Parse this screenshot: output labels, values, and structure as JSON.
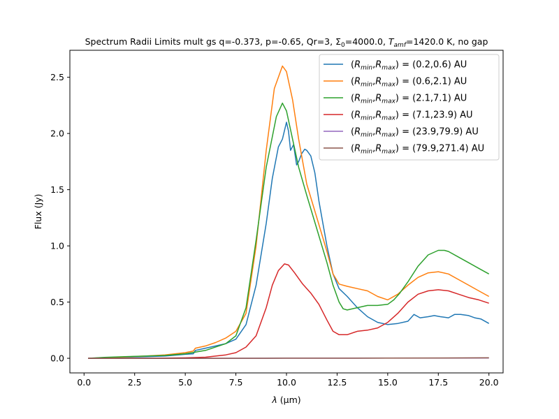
{
  "chart_data": {
    "type": "line",
    "title": {
      "prefix": "Spectrum Radii Limits mult gs q=-0.373, p=-0.65, Qr=3, ",
      "sigma_symbol": "Σ",
      "sigma_sub": "0",
      "sigma_value": "=4000.0, ",
      "tamf_symbol": "T",
      "tamf_sub": "amf",
      "tamf_value": "=1420.0 K, no gap"
    },
    "xlabel": {
      "symbol": "λ",
      "unit": " (μm)"
    },
    "ylabel": "Flux (Jy)",
    "xlim": [
      -0.7,
      20.7
    ],
    "ylim": [
      -0.13,
      2.74
    ],
    "xticks": [
      0.0,
      2.5,
      5.0,
      7.5,
      10.0,
      12.5,
      15.0,
      17.5,
      20.0
    ],
    "xtick_labels": [
      "0.0",
      "2.5",
      "5.0",
      "7.5",
      "10.0",
      "12.5",
      "15.0",
      "17.5",
      "20.0"
    ],
    "yticks": [
      0.0,
      0.5,
      1.0,
      1.5,
      2.0,
      2.5
    ],
    "ytick_labels": [
      "0.0",
      "0.5",
      "1.0",
      "1.5",
      "2.0",
      "2.5"
    ],
    "grid": false,
    "legend": {
      "placement": "top-right",
      "prefix": "(",
      "rmin_symbol": "R",
      "rmin_sub": "min",
      "sep": ",",
      "rmax_symbol": "R",
      "rmax_sub": "max",
      "mid": ") = "
    },
    "series": [
      {
        "range": "(0.2,0.6) AU",
        "color": "#1f77b4",
        "x": [
          0.2,
          1.0,
          2.0,
          3.0,
          4.0,
          5.0,
          5.4,
          5.5,
          6.0,
          7.0,
          7.5,
          8.0,
          8.5,
          9.0,
          9.3,
          9.6,
          9.8,
          10.0,
          10.1,
          10.2,
          10.35,
          10.5,
          10.6,
          10.75,
          10.9,
          11.0,
          11.2,
          11.4,
          11.6,
          11.8,
          12.0,
          12.3,
          12.6,
          13.0,
          13.5,
          14.0,
          14.5,
          15.0,
          15.5,
          16.0,
          16.3,
          16.6,
          17.0,
          17.3,
          17.6,
          18.0,
          18.3,
          18.6,
          19.0,
          19.3,
          19.6,
          20.0
        ],
        "y": [
          0.0,
          0.005,
          0.01,
          0.015,
          0.02,
          0.035,
          0.04,
          0.07,
          0.09,
          0.13,
          0.17,
          0.3,
          0.65,
          1.2,
          1.6,
          1.88,
          1.95,
          2.1,
          2.02,
          1.85,
          1.9,
          1.72,
          1.75,
          1.82,
          1.86,
          1.85,
          1.8,
          1.65,
          1.4,
          1.2,
          1.0,
          0.75,
          0.62,
          0.55,
          0.45,
          0.37,
          0.32,
          0.3,
          0.31,
          0.33,
          0.39,
          0.36,
          0.37,
          0.38,
          0.37,
          0.36,
          0.39,
          0.39,
          0.38,
          0.36,
          0.35,
          0.31
        ]
      },
      {
        "range": "(0.6,2.1) AU",
        "color": "#ff7f0e",
        "x": [
          0.2,
          1.0,
          2.0,
          3.0,
          4.0,
          5.0,
          5.4,
          5.5,
          6.0,
          6.5,
          7.0,
          7.5,
          8.0,
          8.5,
          9.0,
          9.4,
          9.8,
          10.0,
          10.3,
          10.6,
          11.0,
          11.5,
          12.0,
          12.3,
          12.6,
          13.0,
          13.5,
          14.0,
          14.5,
          15.0,
          15.5,
          16.0,
          16.5,
          17.0,
          17.5,
          18.0,
          18.5,
          19.0,
          19.5,
          20.0
        ],
        "y": [
          0.0,
          0.005,
          0.012,
          0.02,
          0.03,
          0.05,
          0.065,
          0.09,
          0.11,
          0.14,
          0.18,
          0.24,
          0.4,
          1.0,
          1.85,
          2.4,
          2.6,
          2.55,
          2.3,
          1.95,
          1.55,
          1.25,
          0.95,
          0.75,
          0.66,
          0.64,
          0.62,
          0.6,
          0.55,
          0.52,
          0.57,
          0.65,
          0.72,
          0.76,
          0.77,
          0.75,
          0.7,
          0.65,
          0.6,
          0.55
        ]
      },
      {
        "range": "(2.1,7.1) AU",
        "color": "#2ca02c",
        "x": [
          0.2,
          1.0,
          2.0,
          3.0,
          4.0,
          5.0,
          6.0,
          7.0,
          7.5,
          8.0,
          8.5,
          9.0,
          9.5,
          9.8,
          10.0,
          10.3,
          10.6,
          11.0,
          11.5,
          12.0,
          12.3,
          12.6,
          12.8,
          13.0,
          13.5,
          14.0,
          14.5,
          15.0,
          15.3,
          15.6,
          16.0,
          16.5,
          17.0,
          17.5,
          17.8,
          18.0,
          18.5,
          19.0,
          19.5,
          20.0
        ],
        "y": [
          0.0,
          0.008,
          0.015,
          0.02,
          0.025,
          0.04,
          0.07,
          0.13,
          0.2,
          0.45,
          1.05,
          1.7,
          2.15,
          2.27,
          2.2,
          1.95,
          1.7,
          1.45,
          1.15,
          0.85,
          0.65,
          0.5,
          0.44,
          0.43,
          0.45,
          0.47,
          0.47,
          0.48,
          0.52,
          0.58,
          0.68,
          0.82,
          0.92,
          0.96,
          0.96,
          0.95,
          0.9,
          0.85,
          0.8,
          0.75
        ]
      },
      {
        "range": "(7.1,23.9) AU",
        "color": "#d62728",
        "x": [
          0.2,
          2.0,
          4.0,
          5.0,
          6.0,
          7.0,
          7.5,
          8.0,
          8.5,
          9.0,
          9.3,
          9.6,
          9.9,
          10.1,
          10.4,
          10.8,
          11.2,
          11.6,
          12.0,
          12.3,
          12.6,
          13.0,
          13.5,
          14.0,
          14.5,
          15.0,
          15.5,
          16.0,
          16.5,
          17.0,
          17.5,
          18.0,
          18.5,
          19.0,
          19.5,
          20.0
        ],
        "y": [
          0.0,
          0.0,
          0.002,
          0.004,
          0.01,
          0.03,
          0.05,
          0.1,
          0.2,
          0.45,
          0.65,
          0.78,
          0.84,
          0.83,
          0.76,
          0.66,
          0.58,
          0.48,
          0.34,
          0.24,
          0.21,
          0.21,
          0.24,
          0.25,
          0.27,
          0.32,
          0.4,
          0.5,
          0.57,
          0.6,
          0.61,
          0.6,
          0.57,
          0.54,
          0.52,
          0.49
        ]
      },
      {
        "range": "(23.9,79.9) AU",
        "color": "#9467bd",
        "x": [
          0.2,
          5.0,
          10.0,
          15.0,
          20.0
        ],
        "y": [
          0.0,
          0.0,
          0.001,
          0.002,
          0.003
        ]
      },
      {
        "range": "(79.9,271.4) AU",
        "color": "#8c564b",
        "x": [
          0.2,
          5.0,
          10.0,
          15.0,
          20.0
        ],
        "y": [
          0.0,
          0.0,
          0.001,
          0.002,
          0.004
        ]
      }
    ]
  }
}
